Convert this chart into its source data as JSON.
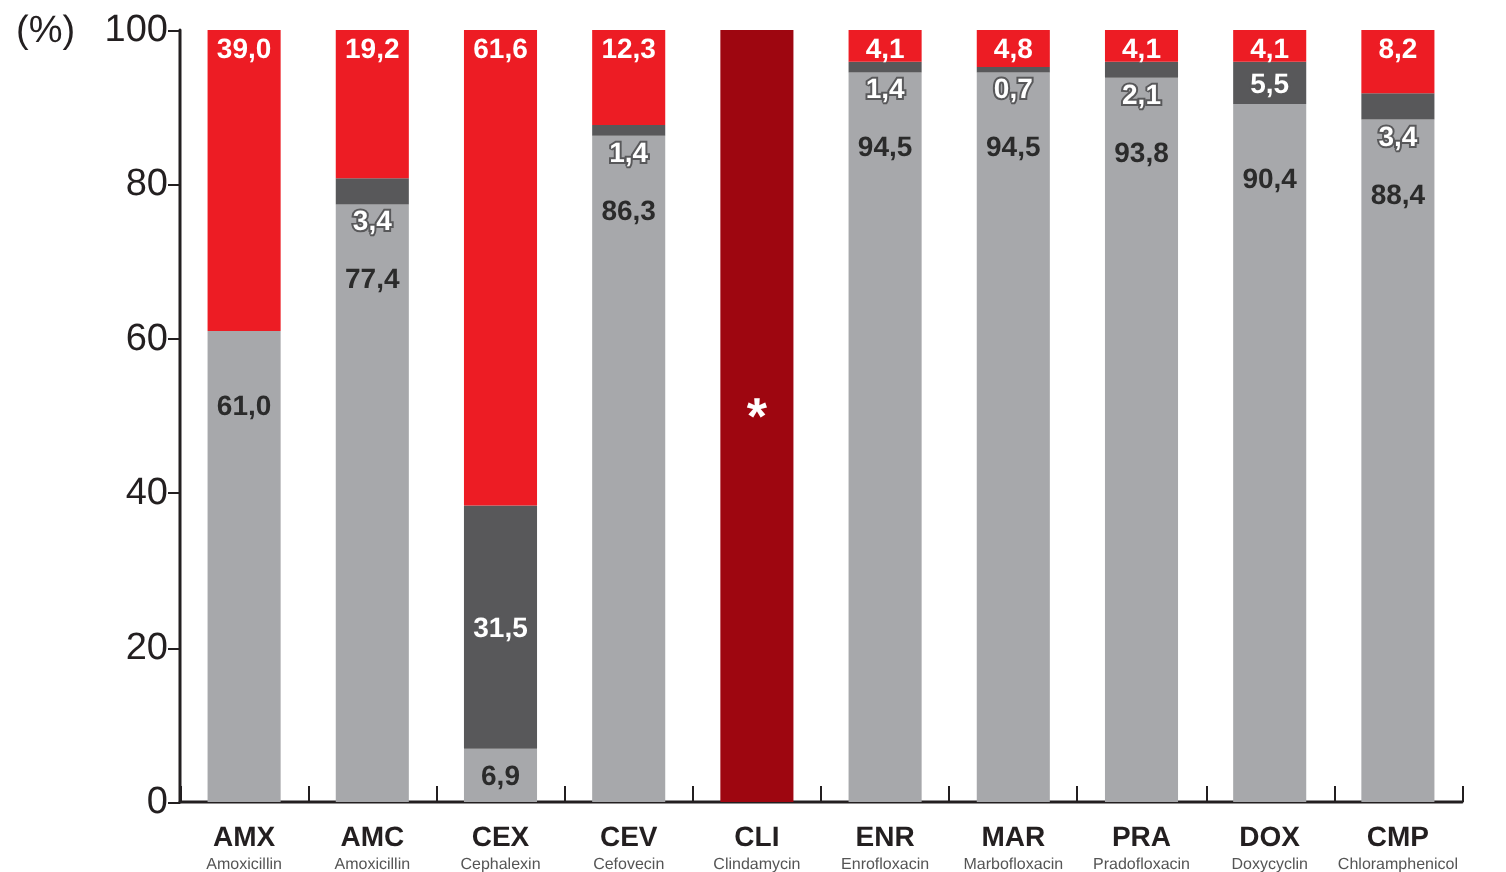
{
  "chart_data": {
    "type": "bar",
    "stacked": true,
    "ylabel": "(%)",
    "categories": [
      "AMX\nAmoxicillin",
      "AMC\nAmoxicillin",
      "CEX\nCephalexin",
      "CEV\nCefovecin",
      "CLI\nClindamycin",
      "ENR\nEnrofloxacin",
      "MAR\nMarbofloxacin",
      "PRA\nPradofloxacin",
      "DOX\nDoxycyclin",
      "CMP\nChloramphenicol"
    ],
    "series": [
      {
        "color": "#a7a8ab",
        "values": [
          61.0,
          77.4,
          6.9,
          86.3,
          null,
          94.5,
          94.5,
          93.8,
          90.4,
          88.4
        ],
        "value_labels": [
          "61,0",
          "77,4",
          "6,9",
          "86,3",
          null,
          "94,5",
          "94,5",
          "93,8",
          "90,4",
          "88,4"
        ]
      },
      {
        "color": "#58585a",
        "values": [
          null,
          3.4,
          31.5,
          1.4,
          null,
          1.4,
          0.7,
          2.1,
          5.5,
          3.4
        ],
        "value_labels": [
          null,
          "3,4",
          "31,5",
          "1,4",
          null,
          "1,4",
          "0,7",
          "2,1",
          "5,5",
          "3,4"
        ]
      },
      {
        "color": "#ed1c24",
        "colors": [
          "#ed1c24",
          "#ed1c24",
          "#ed1c24",
          "#ed1c24",
          "#9e0610",
          "#ed1c24",
          "#ed1c24",
          "#ed1c24",
          "#ed1c24",
          "#ed1c24"
        ],
        "values": [
          39.0,
          19.2,
          61.6,
          12.3,
          100,
          4.1,
          4.8,
          4.1,
          4.1,
          8.2
        ],
        "value_labels": [
          "39,0",
          "19,2",
          "61,6",
          "12,3",
          "*",
          "4,1",
          "4,8",
          "4,1",
          "4,1",
          "8,2"
        ]
      }
    ],
    "ylim": [
      0,
      100
    ],
    "yticks": [
      0,
      20,
      40,
      60,
      80,
      100
    ]
  }
}
